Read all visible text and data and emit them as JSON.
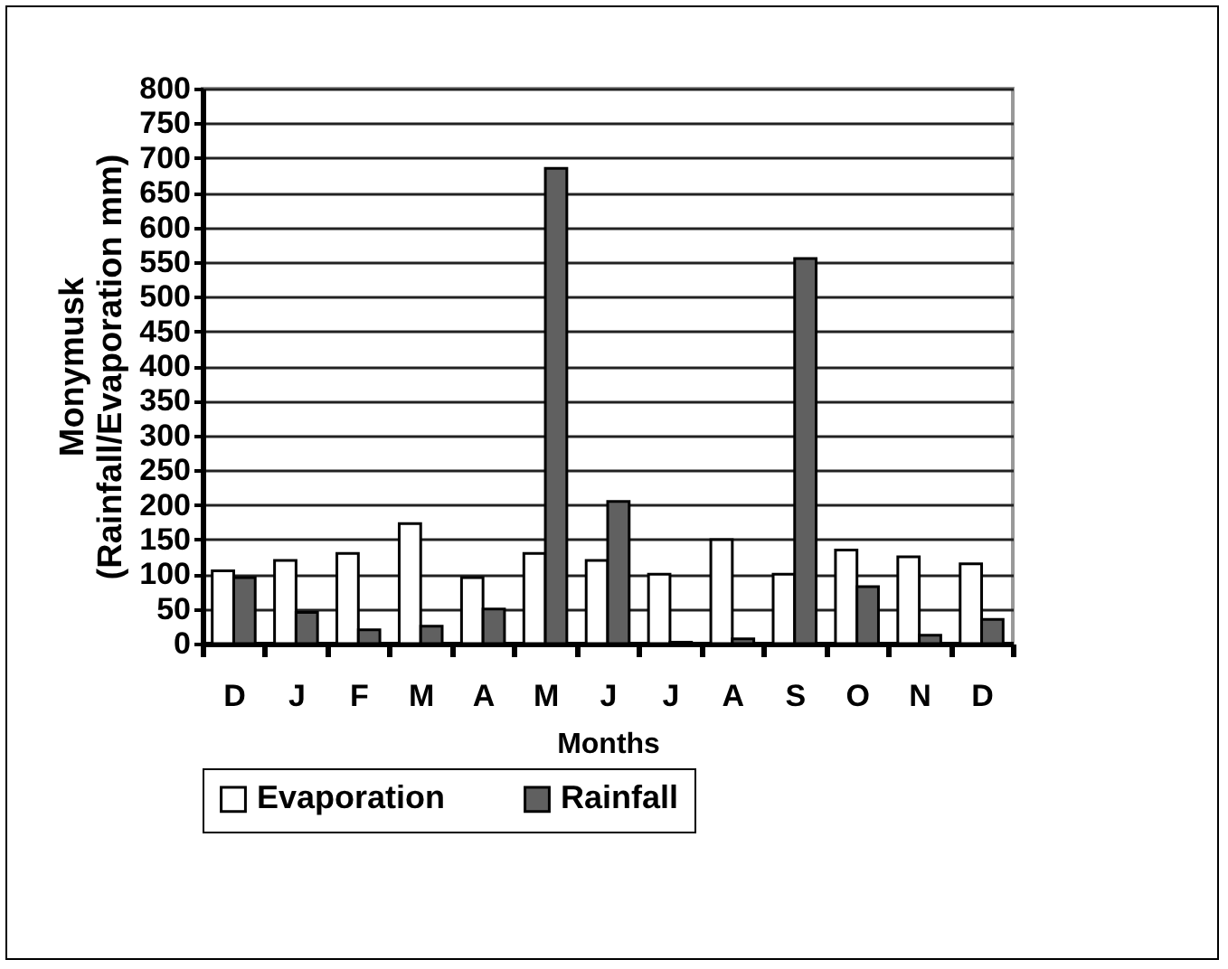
{
  "chart_data": {
    "type": "bar",
    "xlabel": "Months",
    "ylabel": "Monymusk\n(Rainfall/Evaporation mm)",
    "categories": [
      "D",
      "J",
      "F",
      "M",
      "A",
      "M",
      "J",
      "J",
      "A",
      "S",
      "O",
      "N",
      "D"
    ],
    "series": [
      {
        "name": "Evaporation",
        "color": "#ffffff",
        "values": [
          105,
          120,
          130,
          173,
          95,
          130,
          120,
          100,
          150,
          100,
          135,
          125,
          115
        ]
      },
      {
        "name": "Rainfall",
        "color": "#606060",
        "values": [
          95,
          45,
          20,
          25,
          50,
          685,
          205,
          2,
          7,
          555,
          82,
          12,
          35
        ]
      }
    ],
    "ylim": [
      0,
      800
    ],
    "yticks": [
      0,
      50,
      100,
      150,
      200,
      250,
      300,
      350,
      400,
      450,
      500,
      550,
      600,
      650,
      700,
      750,
      800
    ],
    "grid": "y",
    "legend": "bottom"
  }
}
